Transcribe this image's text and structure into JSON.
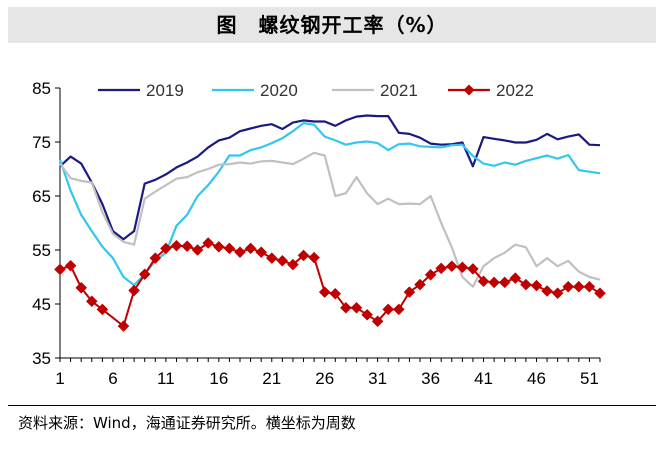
{
  "header": {
    "title": "图　螺纹钢开工率（%）"
  },
  "footer": {
    "source": "资料来源：Wind，海通证券研究所。横坐标为周数"
  },
  "chart_data": {
    "type": "line",
    "title": "图　螺纹钢开工率（%）",
    "xlabel": "",
    "ylabel": "",
    "x": [
      1,
      2,
      3,
      4,
      5,
      6,
      7,
      8,
      9,
      10,
      11,
      12,
      13,
      14,
      15,
      16,
      17,
      18,
      19,
      20,
      21,
      22,
      23,
      24,
      25,
      26,
      27,
      28,
      29,
      30,
      31,
      32,
      33,
      34,
      35,
      36,
      37,
      38,
      39,
      40,
      41,
      42,
      43,
      44,
      45,
      46,
      47,
      48,
      49,
      50,
      51,
      52
    ],
    "xticks": [
      1,
      6,
      11,
      16,
      21,
      26,
      31,
      36,
      41,
      46,
      51
    ],
    "ylim": [
      35,
      85
    ],
    "yticks": [
      35,
      45,
      55,
      65,
      75,
      85
    ],
    "legend_position": "top",
    "series": [
      {
        "name": "2019",
        "color": "#1a1a80",
        "marker": "none",
        "values": [
          70.5,
          72.3,
          71.0,
          67.5,
          63.5,
          58.5,
          57.0,
          58.5,
          67.3,
          68.0,
          69.0,
          70.3,
          71.2,
          72.3,
          74.0,
          75.3,
          75.8,
          77.0,
          77.5,
          78.0,
          78.3,
          77.4,
          78.6,
          79.0,
          78.8,
          78.8,
          78.0,
          79.0,
          79.7,
          79.9,
          79.8,
          79.8,
          76.7,
          76.5,
          75.8,
          74.7,
          74.5,
          74.6,
          74.9,
          70.5,
          75.9,
          75.6,
          75.3,
          74.9,
          74.9,
          75.4,
          76.5,
          75.5,
          76.0,
          76.4,
          74.5,
          74.4
        ]
      },
      {
        "name": "2020",
        "color": "#33c6f0",
        "marker": "none",
        "values": [
          71.7,
          66.0,
          61.5,
          58.5,
          55.6,
          53.5,
          50.0,
          48.5,
          50.5,
          53.0,
          54.5,
          59.5,
          61.5,
          65.0,
          67.0,
          69.5,
          72.5,
          72.5,
          73.5,
          74.0,
          74.8,
          75.7,
          77.0,
          78.5,
          78.2,
          76.0,
          75.3,
          74.5,
          74.9,
          75.1,
          74.8,
          73.5,
          74.6,
          74.7,
          74.2,
          74.1,
          74.0,
          74.4,
          74.5,
          72.4,
          71.0,
          70.6,
          71.2,
          70.8,
          71.5,
          72.0,
          72.5,
          71.9,
          72.6,
          69.8,
          69.5,
          69.2
        ]
      },
      {
        "name": "2021",
        "color": "#c0c0c0",
        "marker": "none",
        "values": [
          71.0,
          68.3,
          67.8,
          67.5,
          62.0,
          58.0,
          56.5,
          56.0,
          64.5,
          65.8,
          67.0,
          68.2,
          68.5,
          69.4,
          70.0,
          70.8,
          70.9,
          71.2,
          71.0,
          71.4,
          71.5,
          71.2,
          70.9,
          71.9,
          73.0,
          72.5,
          65.0,
          65.5,
          68.5,
          65.5,
          63.5,
          64.5,
          63.5,
          63.6,
          63.5,
          65.0,
          60.0,
          55.5,
          50.0,
          48.2,
          52.0,
          53.5,
          54.5,
          56.0,
          55.5,
          52.0,
          53.5,
          52.0,
          53.0,
          51.0,
          50.0,
          49.5
        ]
      },
      {
        "name": "2022",
        "color": "#c00000",
        "marker": "diamond",
        "values": [
          51.4,
          52.1,
          48.0,
          45.5,
          44.0,
          null,
          40.9,
          47.5,
          50.5,
          53.5,
          55.3,
          55.8,
          55.7,
          55.0,
          56.3,
          55.6,
          55.3,
          54.6,
          55.3,
          54.6,
          53.5,
          53.0,
          52.3,
          54.0,
          53.6,
          47.2,
          46.9,
          44.3,
          44.3,
          43.0,
          41.8,
          44.0,
          44.0,
          47.2,
          48.6,
          50.4,
          51.6,
          52.0,
          51.8,
          51.5,
          49.2,
          49.0,
          49.0,
          49.8,
          48.6,
          48.4,
          47.4,
          47.0,
          48.2,
          48.2,
          48.2,
          47.0
        ]
      }
    ]
  }
}
